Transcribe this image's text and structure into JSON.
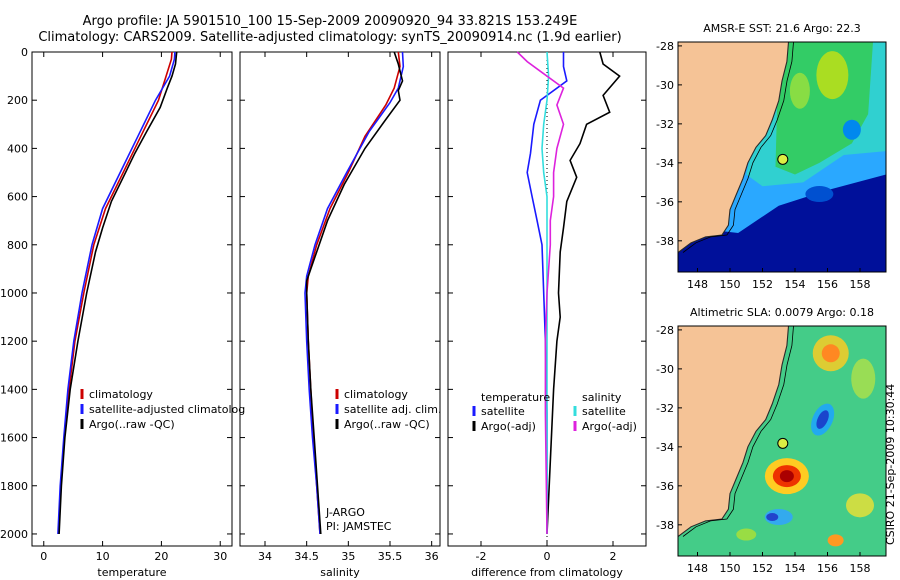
{
  "header": {
    "line1": "Argo profile: JA 5901510_100 15-Sep-2009 20090920_94 33.821S 153.249E",
    "line2": "Climatology: CARS2009. Satellite-adjusted climatology: synTS_20090914.nc (1.9d earlier)"
  },
  "colors": {
    "climatology": "#cc0000",
    "satellite": "#1a1aff",
    "argo": "#000000",
    "salinity_satellite": "#33dddd",
    "salinity_argo": "#dd22dd",
    "land": "#f5c396"
  },
  "chart_data": [
    {
      "type": "line",
      "xlabel": "temperature",
      "ylabel": "",
      "xlim": [
        -2,
        32
      ],
      "ylim": [
        2050,
        0
      ],
      "xticks": [
        0,
        10,
        20,
        30
      ],
      "yticks": [
        0,
        200,
        400,
        600,
        800,
        1000,
        1200,
        1400,
        1600,
        1800,
        2000
      ],
      "legend": [
        "climatology",
        "satellite-adjusted climatolog",
        "Argo(..raw -QC)"
      ],
      "series": [
        {
          "name": "climatology",
          "color": "#cc0000",
          "points": [
            [
              21.8,
              0
            ],
            [
              21.7,
              30
            ],
            [
              20.8,
              100
            ],
            [
              19.5,
              200
            ],
            [
              16.5,
              350
            ],
            [
              13.5,
              500
            ],
            [
              10.5,
              650
            ],
            [
              8.5,
              800
            ],
            [
              6.8,
              1000
            ],
            [
              5.3,
              1200
            ],
            [
              4.3,
              1400
            ],
            [
              3.5,
              1600
            ],
            [
              2.9,
              1800
            ],
            [
              2.5,
              2000
            ]
          ]
        },
        {
          "name": "satellite-adjusted climatolog",
          "color": "#1a1aff",
          "points": [
            [
              22.3,
              0
            ],
            [
              22.2,
              30
            ],
            [
              21.4,
              100
            ],
            [
              19.0,
              200
            ],
            [
              16.0,
              350
            ],
            [
              13.0,
              500
            ],
            [
              10.0,
              650
            ],
            [
              8.2,
              800
            ],
            [
              6.5,
              1000
            ],
            [
              5.1,
              1200
            ],
            [
              4.1,
              1400
            ],
            [
              3.4,
              1600
            ],
            [
              2.8,
              1800
            ],
            [
              2.4,
              2000
            ]
          ]
        },
        {
          "name": "Argo(..raw -QC)",
          "color": "#000000",
          "points": [
            [
              22.6,
              0
            ],
            [
              22.4,
              50
            ],
            [
              21.8,
              100
            ],
            [
              21.0,
              150
            ],
            [
              19.8,
              230
            ],
            [
              17.5,
              330
            ],
            [
              15.5,
              420
            ],
            [
              13.5,
              520
            ],
            [
              11.5,
              620
            ],
            [
              10.0,
              730
            ],
            [
              8.8,
              830
            ],
            [
              7.3,
              1000
            ],
            [
              5.8,
              1200
            ],
            [
              4.5,
              1400
            ],
            [
              3.6,
              1600
            ],
            [
              3.0,
              1800
            ],
            [
              2.6,
              2000
            ]
          ]
        }
      ]
    },
    {
      "type": "line",
      "xlabel": "salinity",
      "ylabel": "",
      "xlim": [
        33.7,
        36.1
      ],
      "ylim": [
        2050,
        0
      ],
      "xticks": [
        34,
        34.5,
        35,
        35.5,
        36
      ],
      "legend": [
        "climatology",
        "satellite adj. clim.",
        "Argo(..raw -QC)"
      ],
      "annotation": [
        "J-ARGO",
        "PI: JAMSTEC"
      ],
      "series": [
        {
          "name": "climatology",
          "color": "#cc0000",
          "points": [
            [
              35.6,
              0
            ],
            [
              35.62,
              60
            ],
            [
              35.55,
              150
            ],
            [
              35.45,
              220
            ],
            [
              35.2,
              350
            ],
            [
              35.0,
              500
            ],
            [
              34.78,
              650
            ],
            [
              34.62,
              800
            ],
            [
              34.52,
              930
            ],
            [
              34.5,
              1000
            ],
            [
              34.52,
              1200
            ],
            [
              34.55,
              1400
            ],
            [
              34.58,
              1600
            ],
            [
              34.62,
              1800
            ],
            [
              34.66,
              2000
            ]
          ]
        },
        {
          "name": "satellite adj. clim.",
          "color": "#1a1aff",
          "points": [
            [
              35.65,
              0
            ],
            [
              35.66,
              60
            ],
            [
              35.6,
              150
            ],
            [
              35.5,
              210
            ],
            [
              35.25,
              330
            ],
            [
              34.98,
              500
            ],
            [
              34.75,
              650
            ],
            [
              34.6,
              800
            ],
            [
              34.5,
              930
            ],
            [
              34.48,
              1000
            ],
            [
              34.5,
              1200
            ],
            [
              34.53,
              1400
            ],
            [
              34.57,
              1600
            ],
            [
              34.62,
              1800
            ],
            [
              34.66,
              2000
            ]
          ]
        },
        {
          "name": "Argo(..raw -QC)",
          "color": "#000000",
          "points": [
            [
              35.55,
              0
            ],
            [
              35.6,
              50
            ],
            [
              35.65,
              120
            ],
            [
              35.6,
              160
            ],
            [
              35.62,
              200
            ],
            [
              35.45,
              280
            ],
            [
              35.2,
              400
            ],
            [
              34.95,
              550
            ],
            [
              34.75,
              700
            ],
            [
              34.6,
              850
            ],
            [
              34.5,
              950
            ],
            [
              34.5,
              1000
            ],
            [
              34.52,
              1200
            ],
            [
              34.55,
              1400
            ],
            [
              34.59,
              1600
            ],
            [
              34.63,
              1800
            ],
            [
              34.67,
              2000
            ]
          ]
        }
      ]
    },
    {
      "type": "line",
      "xlabel": "difference from climatology",
      "ylabel": "",
      "xlim": [
        -3,
        3
      ],
      "ylim": [
        2050,
        0
      ],
      "xticks": [
        -2,
        0,
        2
      ],
      "legend_left_title": "temperature",
      "legend_left": [
        "satellite",
        "Argo(-adj)"
      ],
      "legend_right_title": "salinity",
      "legend_right": [
        "satellite",
        "Argo(-adj)"
      ],
      "series": [
        {
          "name": "temperature satellite",
          "color": "#1a1aff",
          "points": [
            [
              0.5,
              0
            ],
            [
              0.5,
              60
            ],
            [
              0.6,
              120
            ],
            [
              -0.2,
              200
            ],
            [
              -0.4,
              300
            ],
            [
              -0.5,
              420
            ],
            [
              -0.6,
              500
            ],
            [
              -0.45,
              600
            ],
            [
              -0.3,
              700
            ],
            [
              -0.15,
              800
            ],
            [
              -0.1,
              1000
            ],
            [
              -0.05,
              1200
            ],
            [
              0.0,
              1500
            ],
            [
              0.0,
              2000
            ]
          ]
        },
        {
          "name": "temperature Argo(-adj)",
          "color": "#000000",
          "points": [
            [
              1.6,
              0
            ],
            [
              1.7,
              50
            ],
            [
              2.2,
              100
            ],
            [
              1.7,
              180
            ],
            [
              1.9,
              250
            ],
            [
              1.2,
              300
            ],
            [
              1.0,
              380
            ],
            [
              0.7,
              450
            ],
            [
              0.9,
              520
            ],
            [
              0.6,
              620
            ],
            [
              0.5,
              730
            ],
            [
              0.4,
              830
            ],
            [
              0.35,
              1000
            ],
            [
              0.4,
              1100
            ],
            [
              0.3,
              1200
            ],
            [
              0.2,
              1400
            ],
            [
              0.1,
              1700
            ],
            [
              0.0,
              2000
            ]
          ]
        },
        {
          "name": "salinity satellite",
          "color": "#33dddd",
          "points": [
            [
              0.0,
              0
            ],
            [
              0.05,
              100
            ],
            [
              0.0,
              200
            ],
            [
              -0.1,
              300
            ],
            [
              -0.15,
              400
            ],
            [
              -0.1,
              500
            ],
            [
              0.0,
              600
            ],
            [
              0.0,
              800
            ],
            [
              0.0,
              1000
            ],
            [
              0.0,
              1500
            ],
            [
              0.0,
              2000
            ]
          ]
        },
        {
          "name": "salinity Argo(-adj)",
          "color": "#dd22dd",
          "points": [
            [
              -0.9,
              0
            ],
            [
              -0.6,
              40
            ],
            [
              -0.2,
              80
            ],
            [
              0.5,
              150
            ],
            [
              0.3,
              220
            ],
            [
              0.5,
              300
            ],
            [
              0.3,
              400
            ],
            [
              0.2,
              500
            ],
            [
              0.2,
              600
            ],
            [
              0.1,
              700
            ],
            [
              0.1,
              800
            ],
            [
              0.0,
              1000
            ],
            [
              -0.05,
              1200
            ],
            [
              -0.05,
              1500
            ],
            [
              0.0,
              2000
            ]
          ]
        }
      ]
    }
  ],
  "maps": [
    {
      "title": "AMSR-E SST: 21.6 Argo: 22.3",
      "xticks": [
        "148",
        "150",
        "152",
        "154",
        "156",
        "158"
      ],
      "yticks": [
        "-28",
        "-30",
        "-32",
        "-34",
        "-36",
        "-38"
      ],
      "profile_lon": 153.249,
      "profile_lat": -33.821
    },
    {
      "title": "Altimetric SLA: 0.0079 Argo: 0.18",
      "xticks": [
        "148",
        "150",
        "152",
        "154",
        "156",
        "158"
      ],
      "yticks": [
        "-28",
        "-30",
        "-32",
        "-34",
        "-36",
        "-38"
      ],
      "profile_lon": 153.249,
      "profile_lat": -33.821
    }
  ],
  "footer": {
    "stamp": "CSIRO 21-Sep-2009 10:30:44"
  }
}
